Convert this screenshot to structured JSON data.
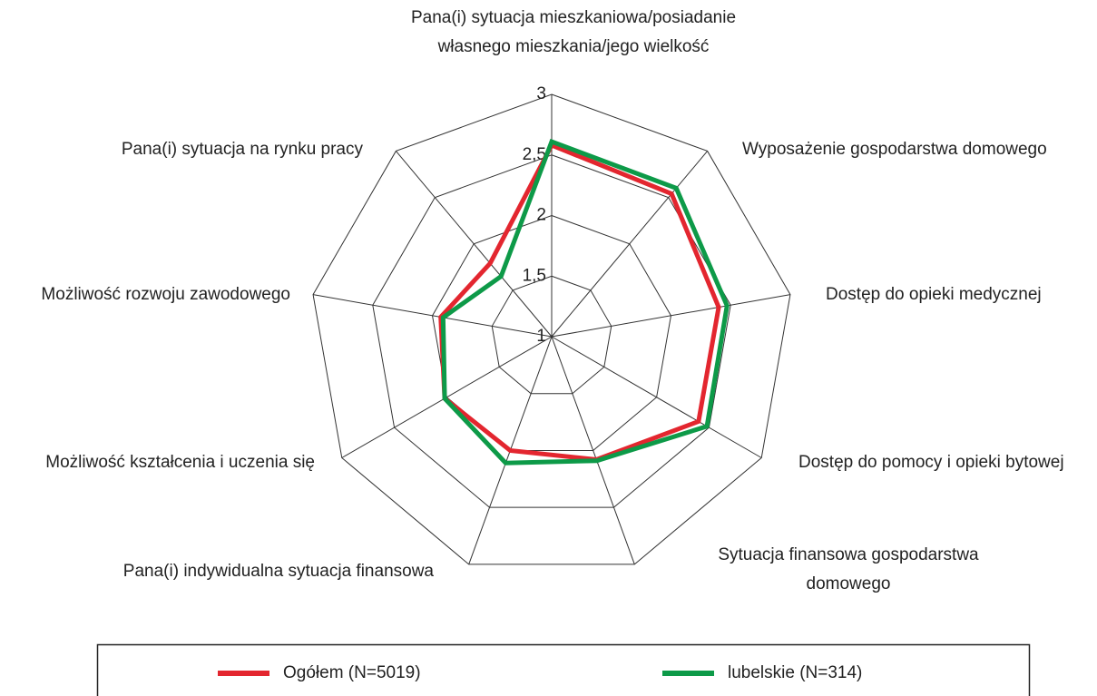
{
  "chart_data": {
    "type": "radar",
    "categories": [
      "Pana(i) sytuacja mieszkaniowa/posiadanie własnego mieszkania/jego wielkość",
      "Wyposażenie gospodarstwa domowego",
      "Dostęp do opieki medycznej",
      "Dostęp do pomocy i opieki bytowej",
      "Sytuacja finansowa gospodarstwa domowego",
      "Pana(i) indywidualna sytuacja finansowa",
      "Możliwość kształcenia i uczenia się",
      "Możliwość rozwoju zawodowego",
      "Pana(i) sytuacja na rynku pracy"
    ],
    "series": [
      {
        "name": "Ogółem (N=5019)",
        "color": "#e3262f",
        "values": [
          2.58,
          2.54,
          2.4,
          2.4,
          2.08,
          2.0,
          2.02,
          1.93,
          1.79
        ]
      },
      {
        "name": "lubelskie  (N=314)",
        "color": "#0d9a48",
        "values": [
          2.61,
          2.6,
          2.47,
          2.48,
          2.09,
          2.11,
          2.02,
          1.91,
          1.65
        ]
      }
    ],
    "ylim": [
      1,
      3
    ],
    "yticks": [
      1,
      {
        "value": 1.5,
        "label": "1,5"
      },
      2,
      {
        "value": 2.5,
        "label": "2,5"
      },
      3
    ],
    "grid": true,
    "legend": "bottom"
  }
}
